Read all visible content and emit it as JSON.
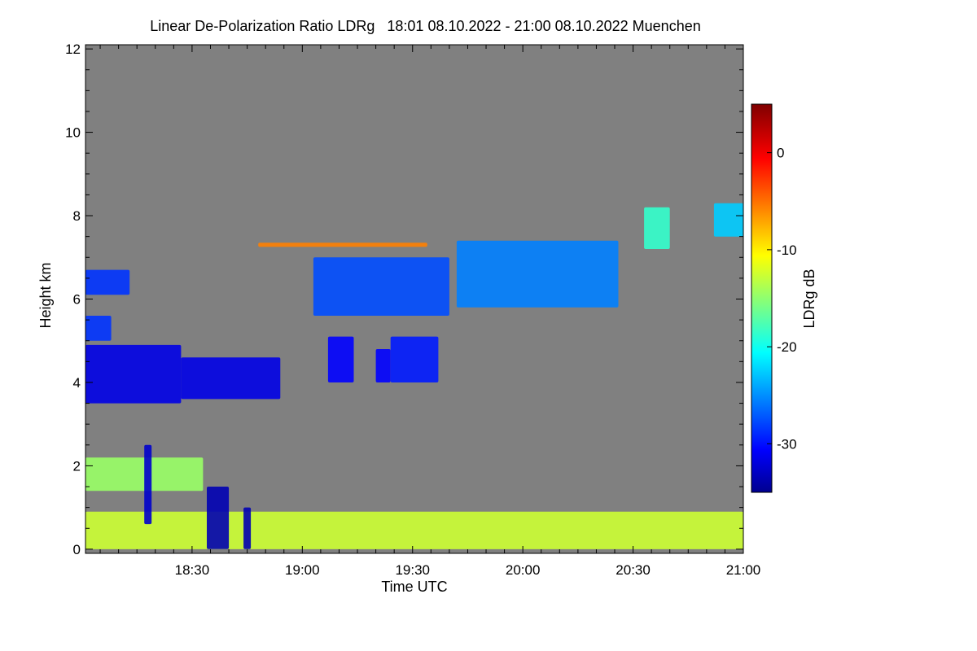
{
  "chart_data": {
    "type": "heatmap",
    "title": "Linear De-Polarization Ratio LDRg   18:01 08.10.2022 - 21:00 08.10.2022 Muenchen",
    "xlabel": "Time UTC",
    "ylabel": "Height km",
    "x_range_minutes": [
      1081,
      1260
    ],
    "y_range_km": [
      -0.1,
      12.1
    ],
    "x_ticks": [
      {
        "label": "18:30",
        "minute": 1110
      },
      {
        "label": "19:00",
        "minute": 1140
      },
      {
        "label": "19:30",
        "minute": 1170
      },
      {
        "label": "20:00",
        "minute": 1200
      },
      {
        "label": "20:30",
        "minute": 1230
      },
      {
        "label": "21:00",
        "minute": 1260
      }
    ],
    "y_ticks": [
      {
        "label": "0",
        "value": 0
      },
      {
        "label": "2",
        "value": 2
      },
      {
        "label": "4",
        "value": 4
      },
      {
        "label": "6",
        "value": 6
      },
      {
        "label": "8",
        "value": 8
      },
      {
        "label": "10",
        "value": 10
      },
      {
        "label": "12",
        "value": 12
      }
    ],
    "colorbar": {
      "label": "LDRg dB",
      "range_db": [
        -35,
        5
      ],
      "ticks": [
        {
          "label": "0",
          "value": 0
        },
        {
          "label": "-10",
          "value": -10
        },
        {
          "label": "-20",
          "value": -20
        },
        {
          "label": "-30",
          "value": -30
        }
      ],
      "colormap": "jet"
    },
    "background_color": "#808080",
    "features": [
      {
        "name": "cloud-layer-low",
        "t_start": 1081,
        "t_end": 1107,
        "h_bottom": 3.5,
        "h_top": 4.9,
        "ldr_db": -31
      },
      {
        "name": "cloud-layer-low-east",
        "t_start": 1107,
        "t_end": 1134,
        "h_bottom": 3.6,
        "h_top": 4.6,
        "ldr_db": -31
      },
      {
        "name": "cloud-cell-1",
        "t_start": 1147,
        "t_end": 1154,
        "h_bottom": 4.0,
        "h_top": 5.1,
        "ldr_db": -30
      },
      {
        "name": "cloud-cell-2",
        "t_start": 1160,
        "t_end": 1164,
        "h_bottom": 4.0,
        "h_top": 4.8,
        "ldr_db": -30
      },
      {
        "name": "cloud-cell-3",
        "t_start": 1164,
        "t_end": 1177,
        "h_bottom": 4.0,
        "h_top": 5.1,
        "ldr_db": -29
      },
      {
        "name": "cloud-patch-5km",
        "t_start": 1081,
        "t_end": 1088,
        "h_bottom": 5.0,
        "h_top": 5.6,
        "ldr_db": -28
      },
      {
        "name": "cirrus-6km",
        "t_start": 1081,
        "t_end": 1093,
        "h_bottom": 6.1,
        "h_top": 6.7,
        "ldr_db": -28
      },
      {
        "name": "cirrus-main-west",
        "t_start": 1143,
        "t_end": 1180,
        "h_bottom": 5.6,
        "h_top": 7.0,
        "ldr_db": -27
      },
      {
        "name": "cirrus-main-east",
        "t_start": 1182,
        "t_end": 1226,
        "h_bottom": 5.8,
        "h_top": 7.4,
        "ldr_db": -25
      },
      {
        "name": "cirrus-streak-8km",
        "t_start": 1233,
        "t_end": 1240,
        "h_bottom": 7.2,
        "h_top": 8.2,
        "ldr_db": -18
      },
      {
        "name": "cirrus-edge-8km",
        "t_start": 1252,
        "t_end": 1260,
        "h_bottom": 7.5,
        "h_top": 8.3,
        "ldr_db": -22
      },
      {
        "name": "thin-layer-7.3km",
        "t_start": 1128,
        "t_end": 1174,
        "h_bottom": 7.25,
        "h_top": 7.35,
        "ldr_db": -5
      },
      {
        "name": "aerosol-boundary-layer",
        "t_start": 1081,
        "t_end": 1260,
        "h_bottom": 0.0,
        "h_top": 0.9,
        "ldr_db": -12
      },
      {
        "name": "aerosol-layer-1.6km",
        "t_start": 1081,
        "t_end": 1113,
        "h_bottom": 1.4,
        "h_top": 2.2,
        "ldr_db": -14
      },
      {
        "name": "precip-fallstreak-1",
        "t_start": 1097,
        "t_end": 1099,
        "h_bottom": 0.6,
        "h_top": 2.5,
        "ldr_db": -32
      },
      {
        "name": "precip-fallstreak-2",
        "t_start": 1114,
        "t_end": 1120,
        "h_bottom": 0.0,
        "h_top": 1.5,
        "ldr_db": -33
      },
      {
        "name": "precip-fallstreak-3",
        "t_start": 1124,
        "t_end": 1126,
        "h_bottom": 0.0,
        "h_top": 1.0,
        "ldr_db": -33
      }
    ]
  }
}
